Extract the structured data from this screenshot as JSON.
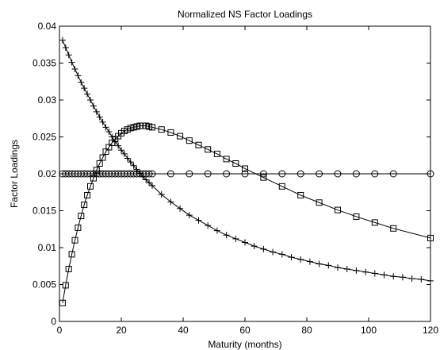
{
  "chart_data": {
    "type": "line",
    "title": "Normalized NS Factor Loadings",
    "xlabel": "Maturity (months)",
    "ylabel": "Factor Loadings",
    "xlim": [
      0,
      120
    ],
    "ylim": [
      0,
      0.04
    ],
    "xticks": [
      0,
      20,
      40,
      60,
      80,
      100,
      120
    ],
    "yticks": [
      0,
      0.005,
      0.01,
      0.015,
      0.02,
      0.025,
      0.03,
      0.035,
      0.04
    ],
    "xtick_labels": [
      "0",
      "20",
      "40",
      "60",
      "80",
      "100",
      "120"
    ],
    "ytick_labels": [
      "0",
      "0.005",
      "0.01",
      "0.015",
      "0.02",
      "0.025",
      "0.03",
      "0.035",
      "0.04"
    ],
    "grid": false,
    "legend": false,
    "series": [
      {
        "marker": "o",
        "x": [
          1,
          2,
          3,
          4,
          5,
          6,
          7,
          8,
          9,
          10,
          11,
          12,
          13,
          14,
          15,
          16,
          17,
          18,
          19,
          20,
          21,
          22,
          23,
          24,
          25,
          26,
          27,
          28,
          29,
          30,
          36,
          42,
          48,
          54,
          60,
          66,
          72,
          78,
          84,
          90,
          96,
          102,
          108,
          120
        ],
        "y": [
          0.02,
          0.02,
          0.02,
          0.02,
          0.02,
          0.02,
          0.02,
          0.02,
          0.02,
          0.02,
          0.02,
          0.02,
          0.02,
          0.02,
          0.02,
          0.02,
          0.02,
          0.02,
          0.02,
          0.02,
          0.02,
          0.02,
          0.02,
          0.02,
          0.02,
          0.02,
          0.02,
          0.02,
          0.02,
          0.02,
          0.02,
          0.02,
          0.02,
          0.02,
          0.02,
          0.02,
          0.02,
          0.02,
          0.02,
          0.02,
          0.02,
          0.02,
          0.02,
          0.02
        ]
      },
      {
        "marker": "+",
        "x": [
          1,
          2,
          3,
          4,
          5,
          6,
          7,
          8,
          9,
          10,
          11,
          12,
          13,
          14,
          15,
          16,
          17,
          18,
          19,
          20,
          21,
          22,
          23,
          24,
          25,
          26,
          27,
          28,
          29,
          30,
          33,
          36,
          39,
          42,
          45,
          48,
          51,
          54,
          57,
          60,
          63,
          66,
          69,
          72,
          75,
          78,
          81,
          84,
          87,
          90,
          93,
          96,
          99,
          102,
          105,
          108,
          111,
          114,
          117,
          120
        ],
        "y": [
          0.0381,
          0.0371,
          0.0361,
          0.0351,
          0.0342,
          0.0333,
          0.0324,
          0.0316,
          0.0308,
          0.03,
          0.0292,
          0.0284,
          0.0277,
          0.027,
          0.0263,
          0.0257,
          0.025,
          0.0244,
          0.0238,
          0.0232,
          0.0227,
          0.0221,
          0.0216,
          0.0211,
          0.0206,
          0.0201,
          0.0196,
          0.0192,
          0.0188,
          0.0184,
          0.0172,
          0.0162,
          0.0153,
          0.0144,
          0.0137,
          0.013,
          0.0123,
          0.0117,
          0.0112,
          0.0107,
          0.0102,
          0.0098,
          0.0094,
          0.0091,
          0.0087,
          0.0084,
          0.0081,
          0.0078,
          0.0076,
          0.0073,
          0.0071,
          0.0069,
          0.0067,
          0.0065,
          0.0063,
          0.0061,
          0.006,
          0.0058,
          0.0057,
          0.0055
        ]
      },
      {
        "marker": "s",
        "x": [
          1,
          2,
          3,
          4,
          5,
          6,
          7,
          8,
          9,
          10,
          11,
          12,
          13,
          14,
          15,
          16,
          17,
          18,
          19,
          20,
          21,
          22,
          23,
          24,
          25,
          26,
          27,
          28,
          29,
          30,
          33,
          36,
          39,
          42,
          45,
          48,
          51,
          54,
          57,
          60,
          66,
          72,
          78,
          84,
          90,
          96,
          102,
          108,
          120
        ],
        "y": [
          0.0025,
          0.0049,
          0.0071,
          0.0091,
          0.011,
          0.0127,
          0.0143,
          0.0158,
          0.0171,
          0.0183,
          0.0194,
          0.0205,
          0.0214,
          0.0222,
          0.023,
          0.0236,
          0.0242,
          0.0247,
          0.0251,
          0.0255,
          0.0258,
          0.026,
          0.0262,
          0.0263,
          0.0264,
          0.0265,
          0.0265,
          0.0265,
          0.0264,
          0.0263,
          0.026,
          0.0256,
          0.0251,
          0.0245,
          0.0239,
          0.0233,
          0.0227,
          0.022,
          0.0214,
          0.0207,
          0.0195,
          0.0183,
          0.0171,
          0.0161,
          0.0151,
          0.0142,
          0.0134,
          0.0126,
          0.0113
        ]
      }
    ]
  }
}
